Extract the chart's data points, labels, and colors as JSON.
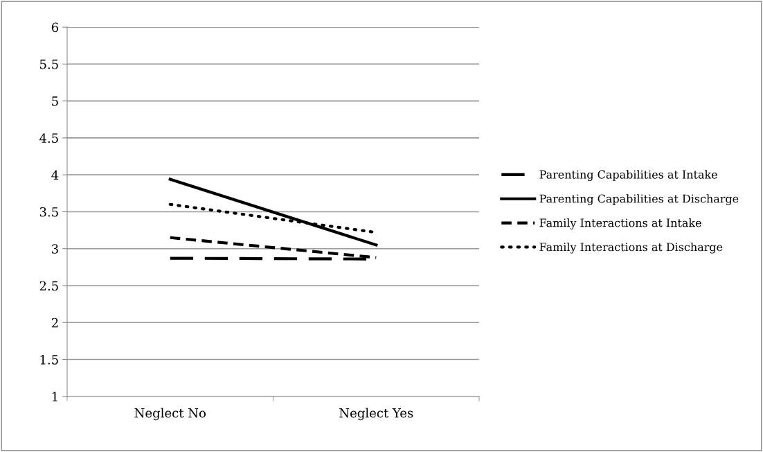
{
  "chart_data": {
    "type": "line",
    "categories": [
      "Neglect No",
      "Neglect Yes"
    ],
    "series": [
      {
        "name": "Parenting Capabilities at Intake",
        "color": "#000000",
        "line_style": "dashed",
        "values": [
          2.87,
          2.86
        ]
      },
      {
        "name": "Parenting Capabilities at Discharge",
        "color": "#000000",
        "line_style": "solid",
        "values": [
          3.94,
          3.05
        ]
      },
      {
        "name": "Family Interactions at Intake",
        "color": "#000000",
        "line_style": "shortdash",
        "values": [
          3.15,
          2.88
        ]
      },
      {
        "name": "Family Interactions at Discharge",
        "color": "#000000",
        "line_style": "dotted",
        "values": [
          3.6,
          3.22
        ]
      }
    ],
    "ylim": [
      1,
      6
    ],
    "yticks": [
      1,
      1.5,
      2,
      2.5,
      3,
      3.5,
      4,
      4.5,
      5,
      5.5,
      6
    ],
    "grid": "y",
    "legend": "right",
    "marker": "none"
  }
}
